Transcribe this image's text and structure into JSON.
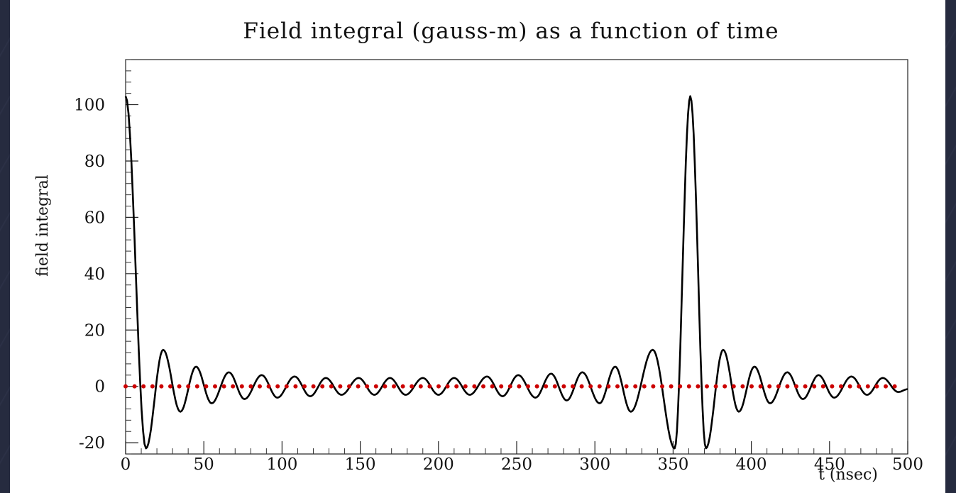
{
  "chart_data": {
    "type": "line",
    "title": "Field integral (gauss-m) as a function of time",
    "xlabel": "t (nsec)",
    "ylabel": "field integral",
    "xlim": [
      0,
      500
    ],
    "ylim": [
      -24,
      116
    ],
    "xticks": [
      0,
      50,
      100,
      150,
      200,
      250,
      300,
      350,
      400,
      450,
      500
    ],
    "yticks": [
      -20,
      0,
      20,
      40,
      60,
      80,
      100
    ],
    "grid": false,
    "series": [
      {
        "color": "#000000",
        "x": [
          0,
          13,
          24,
          35,
          45,
          55,
          66,
          76,
          87,
          97,
          108,
          118,
          128,
          138,
          149,
          159,
          169,
          179,
          190,
          200,
          210,
          220,
          231,
          241,
          251,
          262,
          272,
          282,
          292,
          303,
          313,
          323,
          337,
          351,
          361,
          371,
          382,
          392,
          402,
          412,
          423,
          433,
          443,
          453,
          464,
          474,
          484,
          494,
          500
        ],
        "y": [
          103,
          -22,
          13,
          -9,
          7,
          -6,
          5,
          -4.5,
          4,
          -4,
          3.5,
          -3.5,
          3,
          -3,
          3,
          -3,
          3,
          -3,
          3,
          -3,
          3,
          -3,
          3.5,
          -3.5,
          4,
          -4,
          4.5,
          -5,
          5,
          -6,
          7,
          -9,
          13,
          -22,
          103,
          -22,
          13,
          -9,
          7,
          -6,
          5,
          -4.5,
          4,
          -4,
          3.5,
          -3,
          3,
          -2,
          -1
        ]
      },
      {
        "color": "#cc0000",
        "style": "dotted",
        "x": [
          0,
          500
        ],
        "y": [
          0,
          0
        ]
      }
    ]
  }
}
